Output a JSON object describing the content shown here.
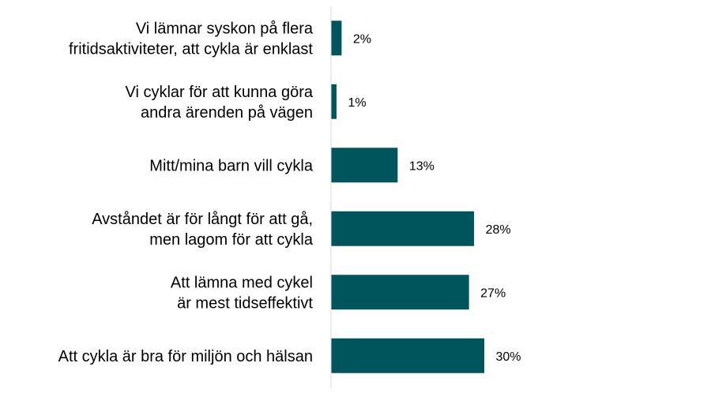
{
  "chart_data": {
    "type": "bar",
    "orientation": "horizontal",
    "categories": [
      [
        "Vi lämnar syskon på flera",
        "fritidsaktiviteter, att cykla är enklast"
      ],
      [
        "Vi cyklar för att kunna göra",
        "andra ärenden på vägen"
      ],
      [
        "Mitt/mina barn vill cykla"
      ],
      [
        "Avståndet är för långt för att gå,",
        "men lagom för att cykla"
      ],
      [
        "Att lämna med cykel",
        "är mest tidseffektivt"
      ],
      [
        "Att cykla är bra för miljön och hälsan"
      ]
    ],
    "values": [
      2,
      1,
      13,
      28,
      27,
      30
    ],
    "value_labels": [
      "2%",
      "1%",
      "13%",
      "28%",
      "27%",
      "30%"
    ],
    "unit": "%",
    "xlim": [
      0,
      70
    ],
    "grid": false,
    "legend": "none",
    "bar_color": "#00545c",
    "title": "",
    "xlabel": "",
    "ylabel": ""
  }
}
